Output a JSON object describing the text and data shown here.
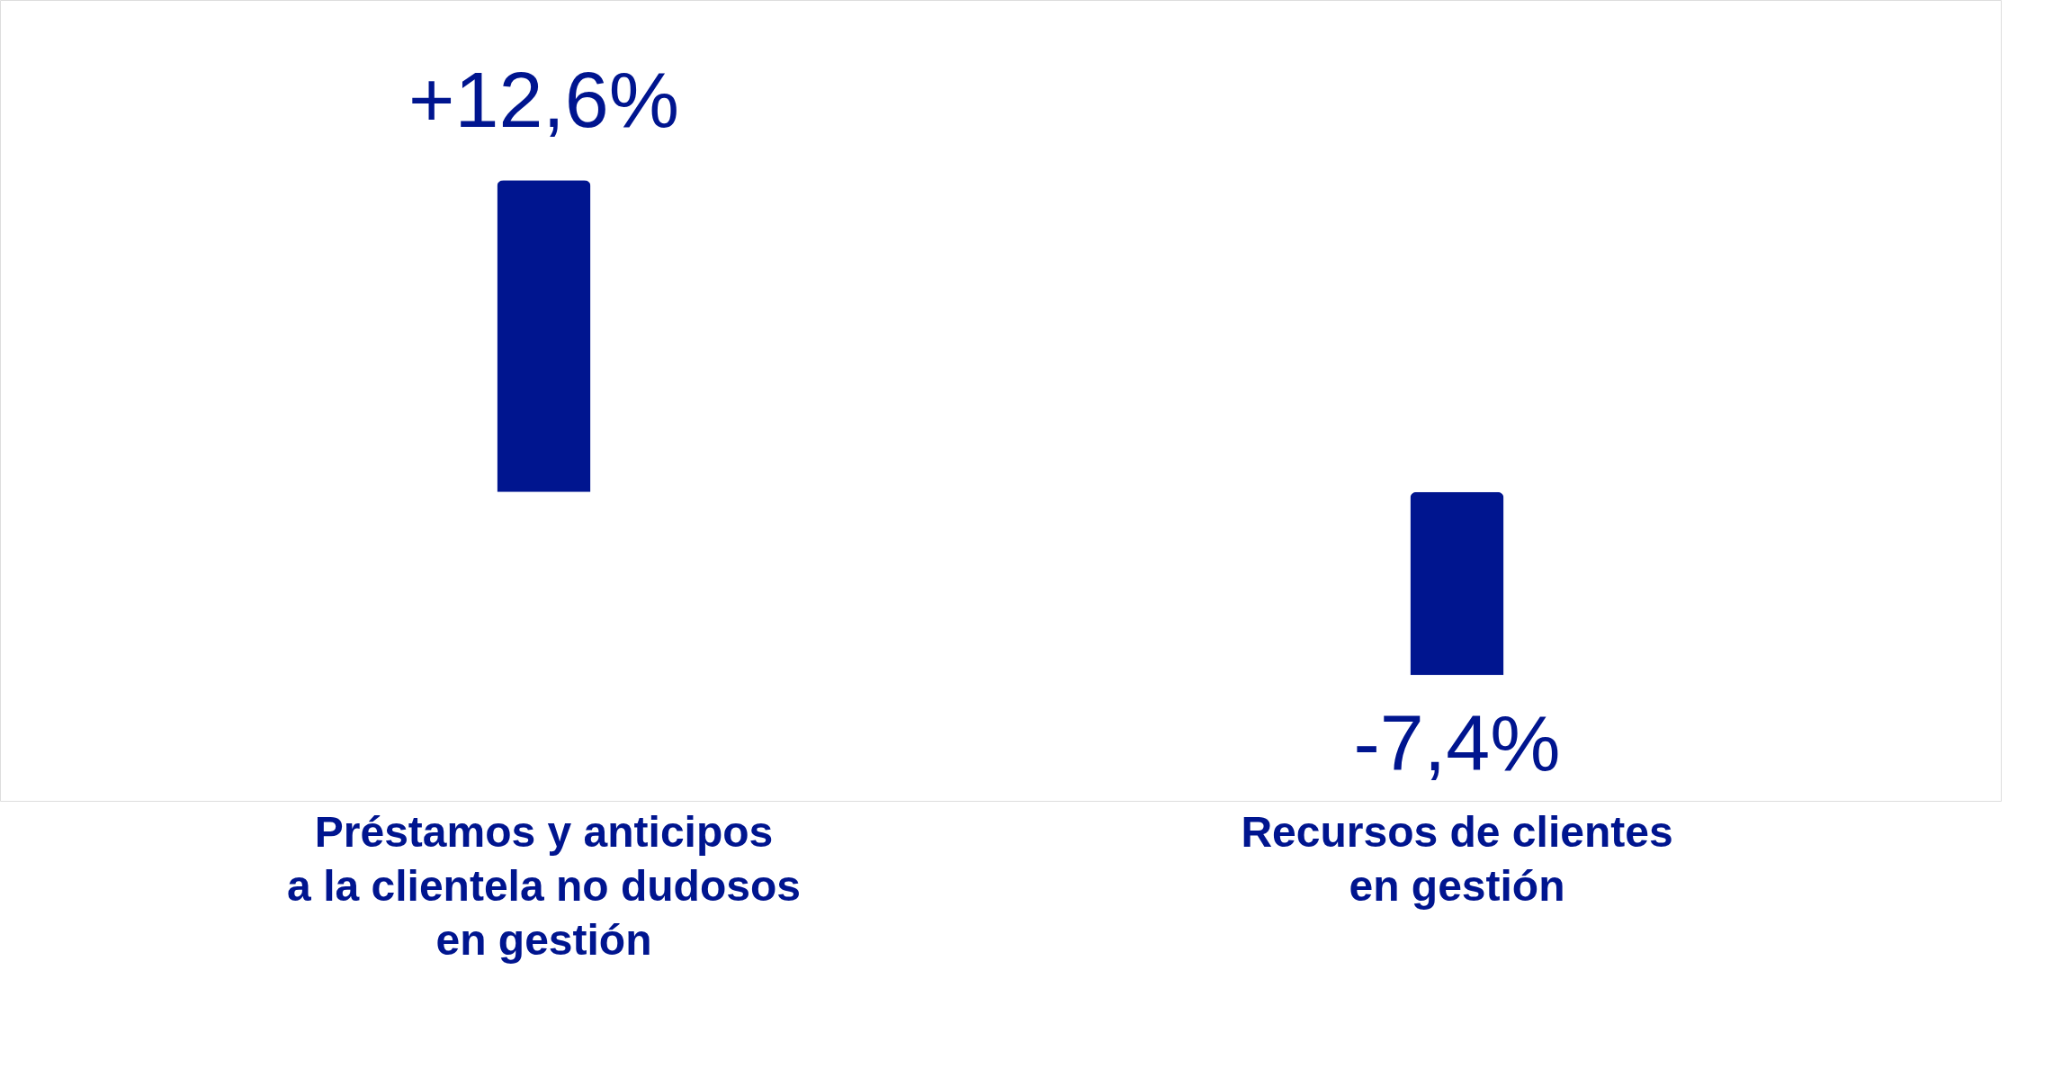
{
  "chart_data": {
    "type": "bar",
    "categories": [
      "Préstamos y anticipos\na la clientela no dudosos\nen gestión",
      "Recursos de clientes\nen gestión"
    ],
    "values": [
      12.6,
      -7.4
    ],
    "color": "#00158f",
    "value_labels": [
      "+12,6%",
      "-7,4%"
    ]
  }
}
